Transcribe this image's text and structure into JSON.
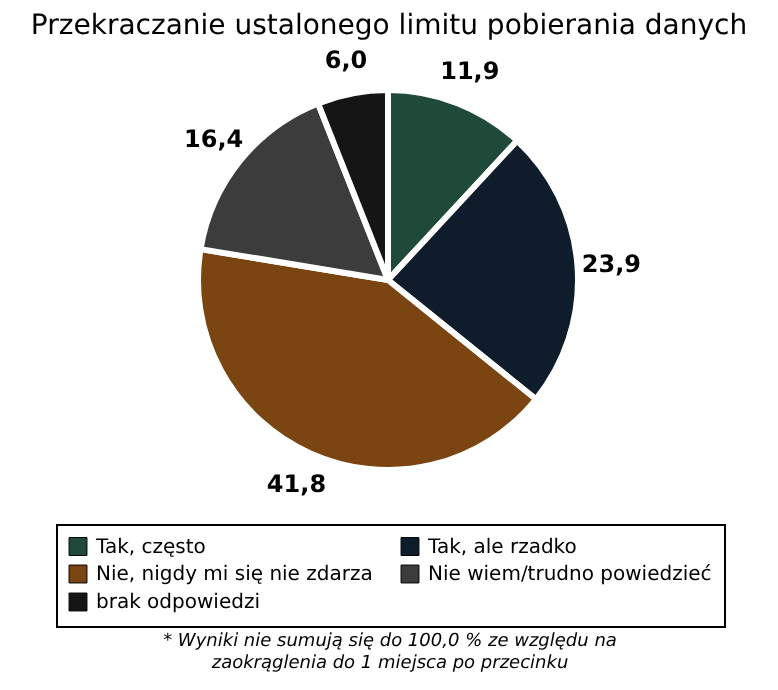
{
  "chart_data": {
    "type": "pie",
    "title": "Przekraczanie ustalonego limitu pobierania danych",
    "categories": [
      "Tak, często",
      "Tak, ale rzadko",
      "Nie, nigdy mi się nie zdarza",
      "Nie wiem/trudno powiedzieć",
      "brak odpowiedzi"
    ],
    "values": [
      11.9,
      23.9,
      41.8,
      16.4,
      6.0
    ],
    "value_labels": [
      "11,9",
      "23,9",
      "41,8",
      "16,4",
      "6,0"
    ],
    "colors": [
      "#1f4a3a",
      "#0f1c2c",
      "#7a4510",
      "#3c3c3c",
      "#151515"
    ],
    "legend": "bottom",
    "annotations": [
      "* Wyniki nie sumują się do 100,0 % ze względu na zaokrąglenia do 1 miejsca po przecinku"
    ]
  }
}
